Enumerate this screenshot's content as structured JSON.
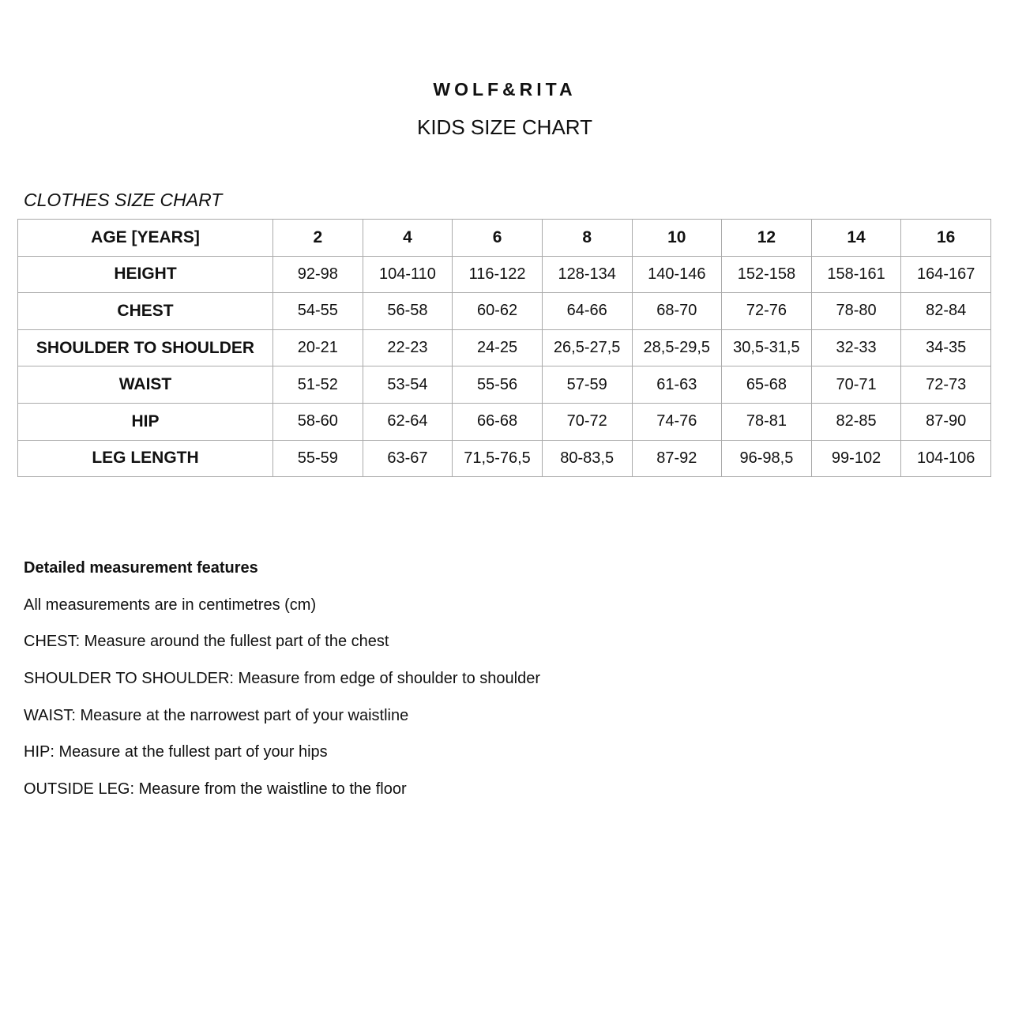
{
  "brand": "WOLF&RITA",
  "subtitle": "KIDS SIZE CHART",
  "section_title": "CLOTHES SIZE CHART",
  "table": {
    "header": [
      "AGE [YEARS]",
      "2",
      "4",
      "6",
      "8",
      "10",
      "12",
      "14",
      "16"
    ],
    "rows": [
      [
        "HEIGHT",
        "92-98",
        "104-110",
        "116-122",
        "128-134",
        "140-146",
        "152-158",
        "158-161",
        "164-167"
      ],
      [
        "CHEST",
        "54-55",
        "56-58",
        "60-62",
        "64-66",
        "68-70",
        "72-76",
        "78-80",
        "82-84"
      ],
      [
        "SHOULDER TO SHOULDER",
        "20-21",
        "22-23",
        "24-25",
        "26,5-27,5",
        "28,5-29,5",
        "30,5-31,5",
        "32-33",
        "34-35"
      ],
      [
        "WAIST",
        "51-52",
        "53-54",
        "55-56",
        "57-59",
        "61-63",
        "65-68",
        "70-71",
        "72-73"
      ],
      [
        "HIP",
        "58-60",
        "62-64",
        "66-68",
        "70-72",
        "74-76",
        "78-81",
        "82-85",
        "87-90"
      ],
      [
        "LEG LENGTH",
        "55-59",
        "63-67",
        "71,5-76,5",
        "80-83,5",
        "87-92",
        "96-98,5",
        "99-102",
        "104-106"
      ]
    ]
  },
  "notes": {
    "heading": "Detailed measurement features",
    "lines": [
      "All measurements are in centimetres (cm)",
      "CHEST: Measure around the fullest part of the chest",
      "SHOULDER TO SHOULDER: Measure from edge of shoulder to shoulder",
      "WAIST: Measure at the narrowest part of your waistline",
      "HIP: Measure at the fullest part of your hips",
      "OUTSIDE LEG: Measure from the waistline to the floor"
    ]
  }
}
